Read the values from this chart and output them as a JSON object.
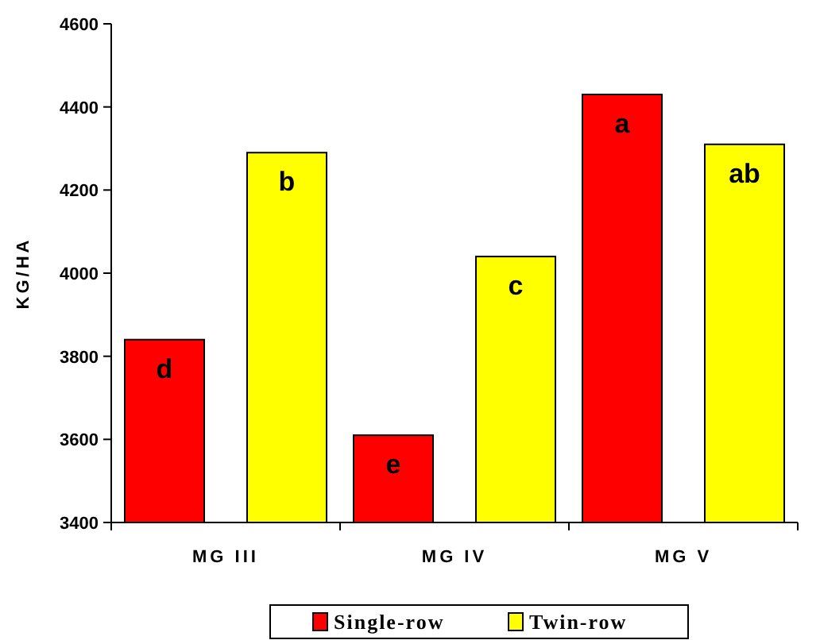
{
  "chart_data": {
    "type": "bar",
    "ylabel": "KG/HA",
    "categories": [
      "MG III",
      "MG IV",
      "MG V"
    ],
    "series": [
      {
        "name": "Single-row",
        "color": "#ff0000",
        "values": [
          3840,
          3610,
          4430
        ]
      },
      {
        "name": "Twin-row",
        "color": "#ffff00",
        "values": [
          4290,
          4040,
          4310
        ]
      }
    ],
    "ylim": [
      3400,
      4600
    ],
    "yticks": [
      3400,
      3600,
      3800,
      4000,
      4200,
      4400,
      4600
    ],
    "grid": false,
    "legend": "bottom",
    "annotations": [
      "d",
      "b",
      "e",
      "c",
      "a",
      "ab"
    ]
  }
}
